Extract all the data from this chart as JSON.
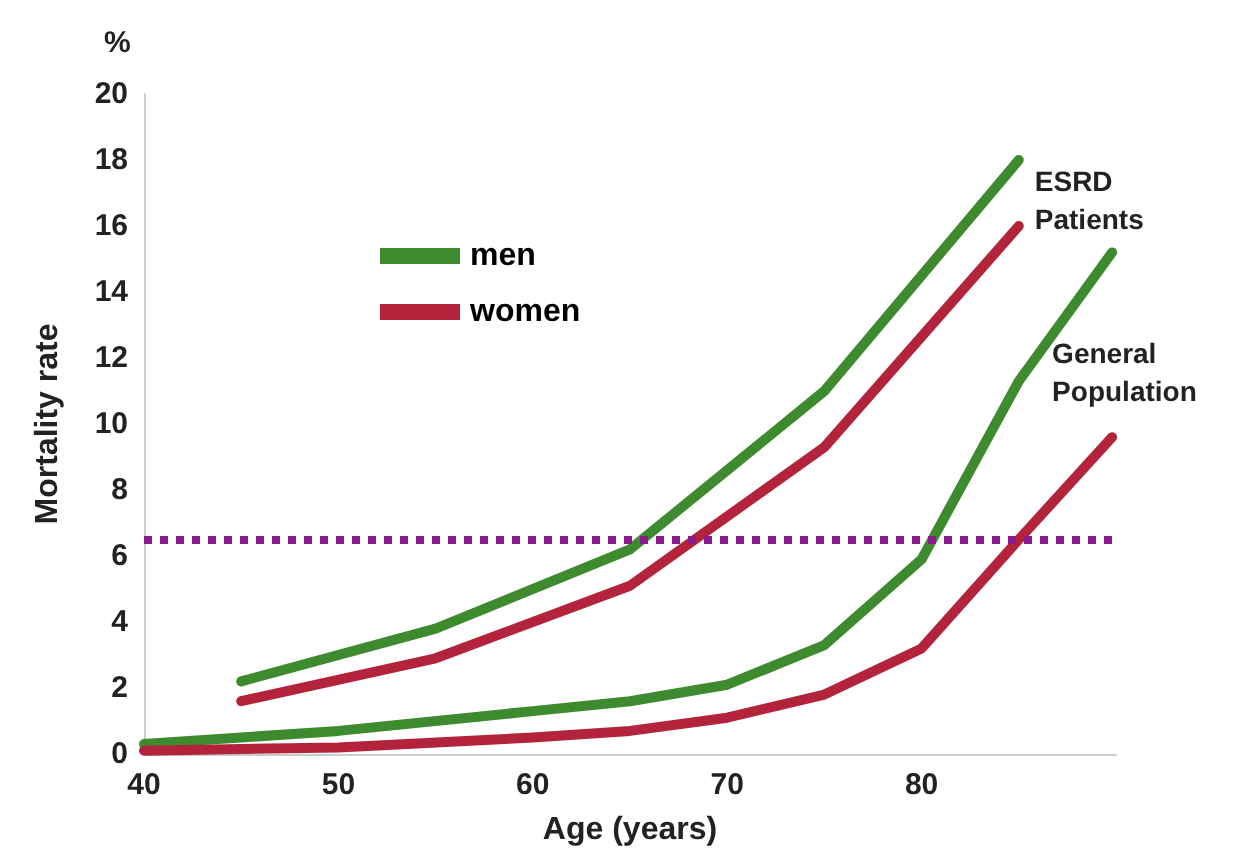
{
  "chart_data": {
    "type": "line",
    "xlabel": "Age (years)",
    "ylabel": "Mortality rate",
    "xlim": [
      40,
      90
    ],
    "xticks": [
      40,
      50,
      60,
      70,
      80
    ],
    "ylim": [
      0,
      20
    ],
    "yticks": [
      0,
      2,
      4,
      6,
      8,
      10,
      12,
      14,
      16,
      18,
      20
    ],
    "grid": false,
    "legend": "top left",
    "marker": "none",
    "line_style": "solid",
    "series": [
      {
        "name": "men",
        "color": "#3d8a2f",
        "x": [
          45,
          55,
          65,
          75,
          85
        ],
        "values": [
          2.2,
          3.8,
          6.2,
          11.0,
          18.0
        ]
      },
      {
        "name": "women",
        "color": "#b3243c",
        "x": [
          45,
          55,
          65,
          75,
          85
        ],
        "values": [
          1.6,
          2.9,
          5.1,
          9.3,
          16.0
        ]
      },
      {
        "color": "#3d8a2f",
        "x": [
          40,
          50,
          60,
          65,
          70,
          75,
          80,
          85,
          89.8
        ],
        "values": [
          0.3,
          0.7,
          1.3,
          1.6,
          2.1,
          3.3,
          5.9,
          11.3,
          15.2
        ]
      },
      {
        "color": "#b3243c",
        "x": [
          40,
          50,
          60,
          65,
          70,
          75,
          80,
          85,
          89.8
        ],
        "values": [
          0.1,
          0.2,
          0.5,
          0.7,
          1.1,
          1.8,
          3.2,
          6.5,
          9.6
        ]
      }
    ],
    "ref_lines": [
      {
        "axis": "y",
        "value": 6.5,
        "color": "#8b1a8b",
        "line_style": "dotted"
      }
    ],
    "annotations": [
      "%",
      "ESRD Patients",
      "General Population"
    ]
  }
}
